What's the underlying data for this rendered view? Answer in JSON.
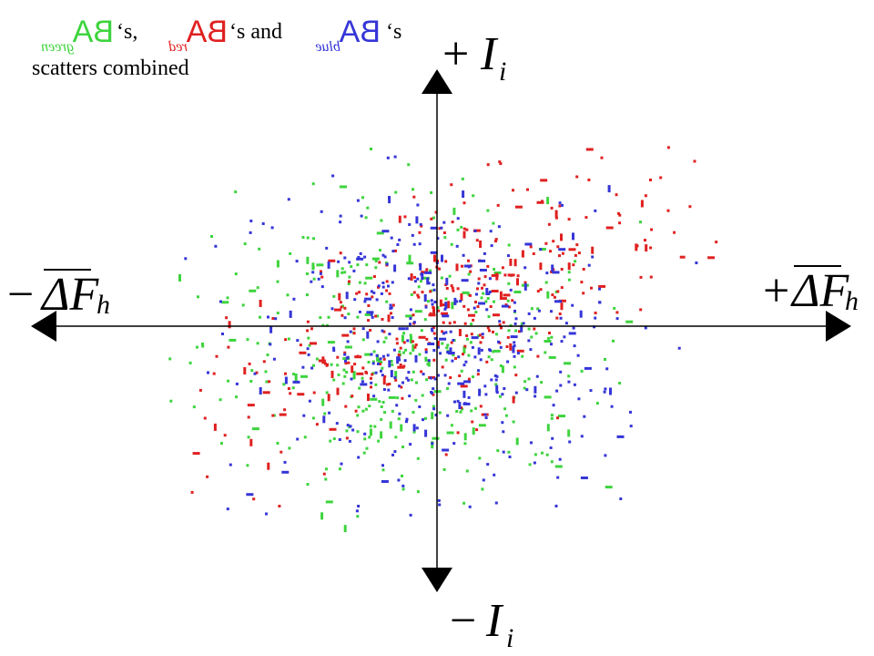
{
  "title": {
    "line1": [
      {
        "label": "BA",
        "subscript": "green",
        "suffix": "‘s,"
      },
      {
        "label": "BA",
        "subscript": "red",
        "suffix": "‘s and"
      },
      {
        "label": "BA",
        "subscript": "blue",
        "suffix": "‘s"
      }
    ],
    "line2": "scatters combined"
  },
  "axes": {
    "top": {
      "sign": "+",
      "symbol": "I",
      "subscript": "i"
    },
    "bottom": {
      "sign": "−",
      "symbol": "I",
      "subscript": "i"
    },
    "left": {
      "sign": "−",
      "symbol": "ΔF",
      "subscript": "h"
    },
    "right": {
      "sign": "+",
      "symbol": "ΔF",
      "subscript": "h"
    }
  }
}
